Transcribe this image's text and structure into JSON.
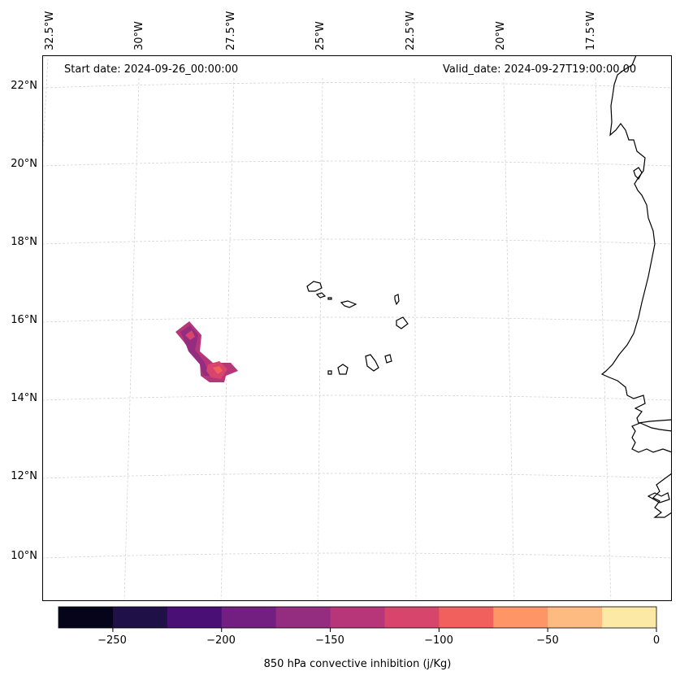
{
  "map": {
    "start_date": "Start date: 2024-09-26_00:00:00",
    "valid_date": "Valid_date: 2024-09-27T19:00:00.00",
    "lon_labels": [
      "32.5°W",
      "30°W",
      "27.5°W",
      "25°W",
      "22.5°W",
      "20°W",
      "17.5°W"
    ],
    "lat_labels": [
      "22°N",
      "20°N",
      "18°N",
      "16°N",
      "14°N",
      "12°N",
      "10°N"
    ]
  },
  "colorbar": {
    "label": "850 hPa convective inhibition (j/Kg)",
    "tick_labels": [
      "−250",
      "−200",
      "−150",
      "−100",
      "−50",
      "0"
    ],
    "levels": [
      -275,
      -250,
      -225,
      -200,
      -175,
      -150,
      -125,
      -100,
      -75,
      -50,
      -25,
      0
    ],
    "colors": [
      "#05041a",
      "#1f1147",
      "#4a0f74",
      "#721f81",
      "#942c80",
      "#b63679",
      "#d8456c",
      "#f1605d",
      "#fd9567",
      "#febb81",
      "#fde9a6"
    ]
  },
  "colors": {
    "gridline": "#d4d4d4",
    "coast": "#000000"
  }
}
